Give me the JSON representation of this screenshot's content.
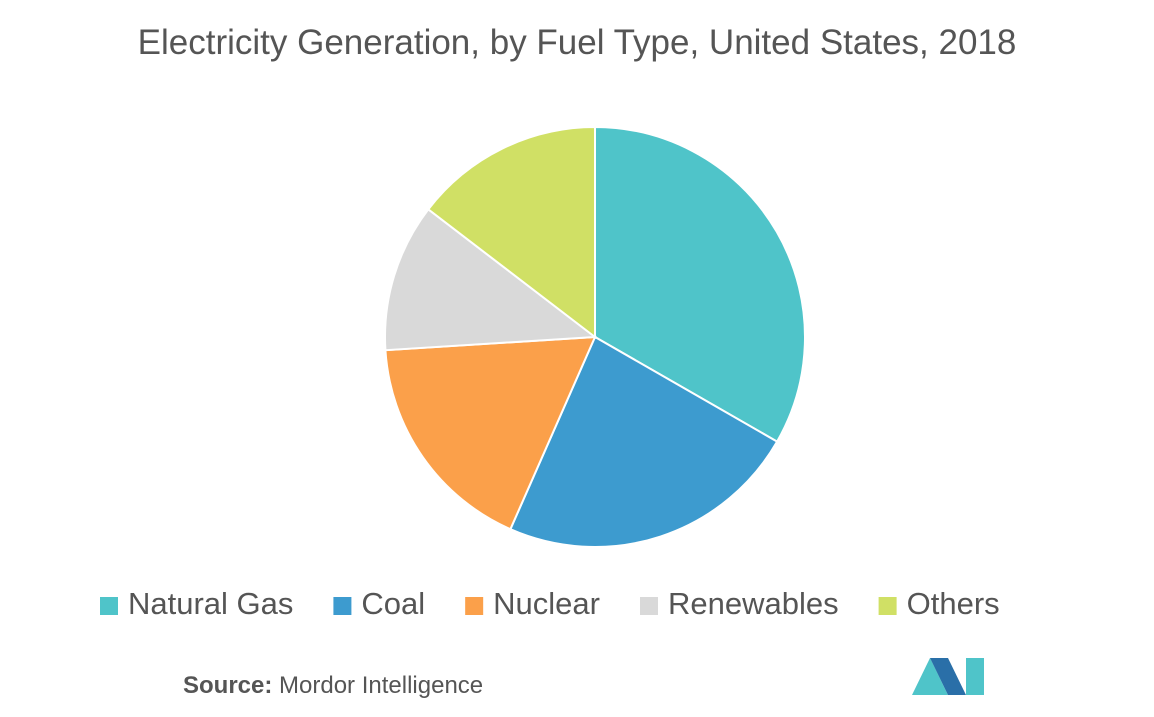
{
  "chart_data": {
    "type": "pie",
    "title": "Electricity Generation, by Fuel Type, United States, 2018",
    "categories": [
      "Natural Gas",
      "Coal",
      "Nuclear",
      "Renewables",
      "Others"
    ],
    "values": [
      33.3,
      23.3,
      17.4,
      11.4,
      14.6
    ],
    "colors": [
      "#4fc4c9",
      "#3d9bcf",
      "#fba04a",
      "#d9d9d9",
      "#d0e065"
    ],
    "legend": "bottom"
  },
  "source": {
    "label": "Source:",
    "text": "Mordor Intelligence"
  }
}
